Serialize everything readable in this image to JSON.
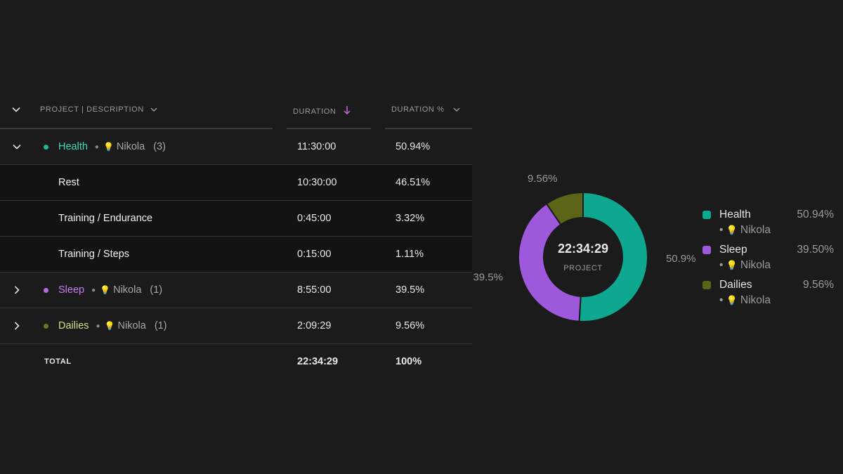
{
  "header": {
    "project_label": "PROJECT | DESCRIPTION",
    "duration_label": "DURATION",
    "duration_pct_label": "DURATION %"
  },
  "groups": [
    {
      "project": "Health",
      "client": "Nikola",
      "count": "(3)",
      "duration": "11:30:00",
      "percent": "50.94%",
      "color": "#1fb59b",
      "expanded": true,
      "children": [
        {
          "description": "Rest",
          "duration": "10:30:00",
          "percent": "46.51%"
        },
        {
          "description": "Training / Endurance",
          "duration": "0:45:00",
          "percent": "3.32%"
        },
        {
          "description": "Training / Steps",
          "duration": "0:15:00",
          "percent": "1.11%"
        }
      ]
    },
    {
      "project": "Sleep",
      "client": "Nikola",
      "count": "(1)",
      "duration": "8:55:00",
      "percent": "39.5%",
      "color": "#b06be0",
      "expanded": false
    },
    {
      "project": "Dailies",
      "client": "Nikola",
      "count": "(1)",
      "duration": "2:09:29",
      "percent": "9.56%",
      "color": "#6b7a22",
      "expanded": false
    }
  ],
  "total": {
    "label": "TOTAL",
    "duration": "22:34:29",
    "percent": "100%"
  },
  "chart_data": {
    "type": "pie",
    "center_value": "22:34:29",
    "center_label": "PROJECT",
    "slices": [
      {
        "name": "Health",
        "value": 50.94,
        "label": "50.9%",
        "color": "#0da88f"
      },
      {
        "name": "Sleep",
        "value": 39.5,
        "label": "39.5%",
        "color": "#9d58db"
      },
      {
        "name": "Dailies",
        "value": 9.56,
        "label": "9.56%",
        "color": "#5c6517"
      }
    ]
  },
  "legend": [
    {
      "name": "Health",
      "percent": "50.94%",
      "client": "Nikola",
      "color": "#0da88f"
    },
    {
      "name": "Sleep",
      "percent": "39.50%",
      "client": "Nikola",
      "color": "#9d58db"
    },
    {
      "name": "Dailies",
      "percent": "9.56%",
      "client": "Nikola",
      "color": "#5c6517"
    }
  ]
}
